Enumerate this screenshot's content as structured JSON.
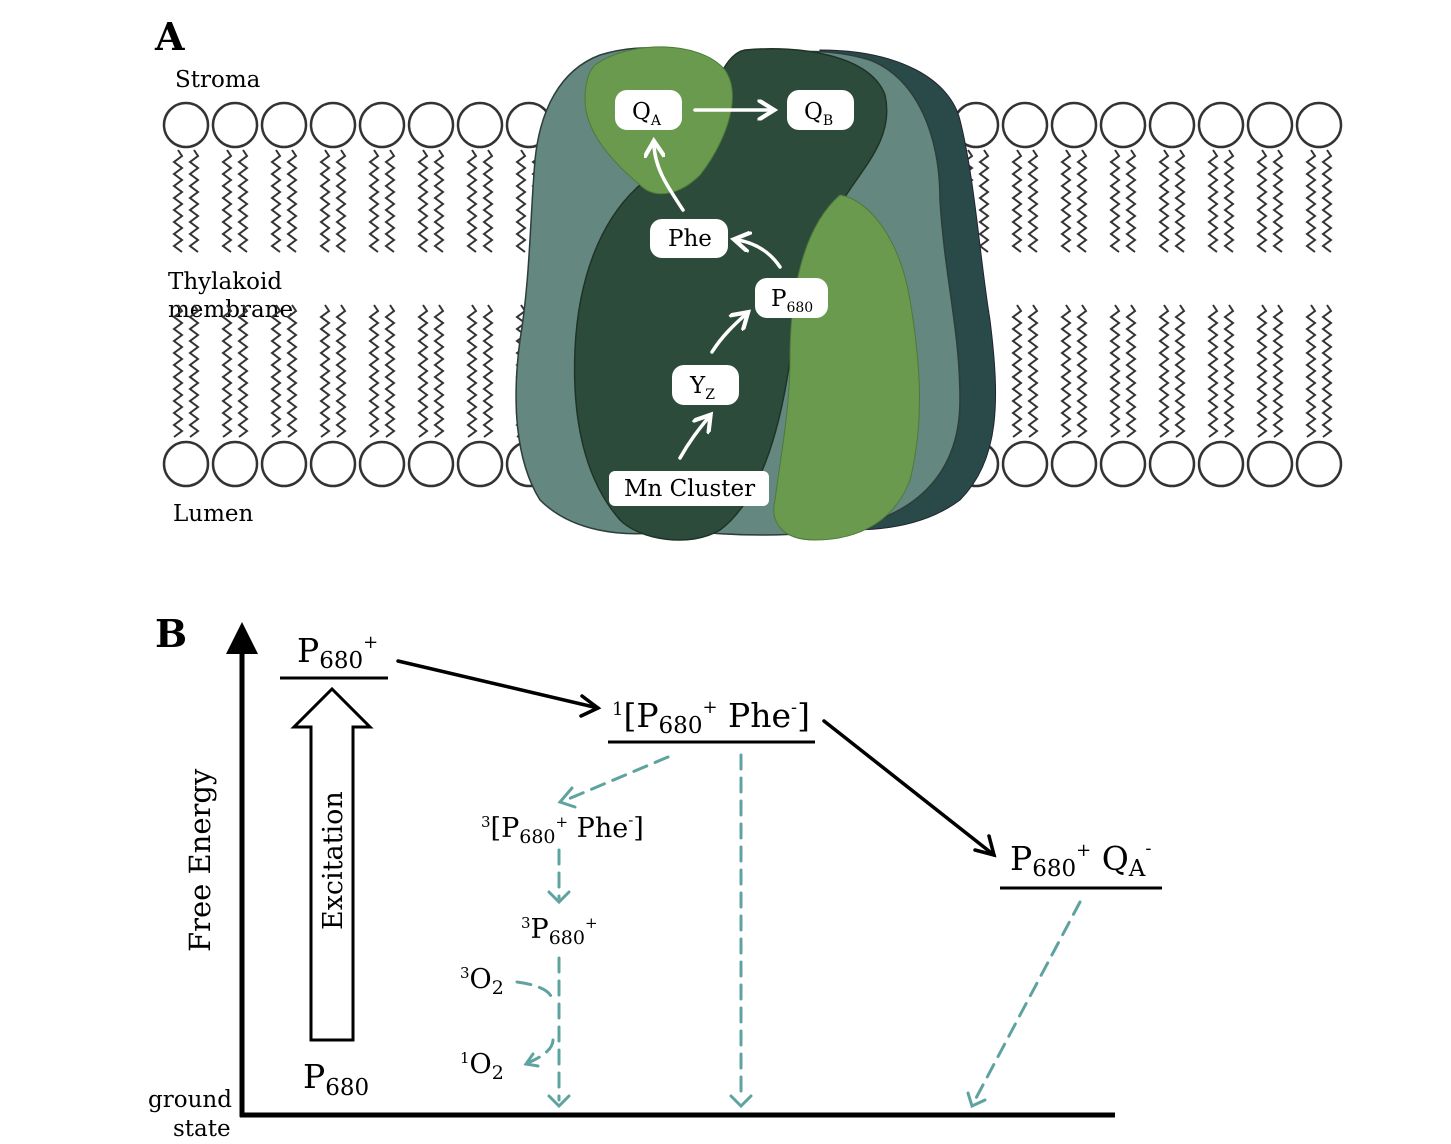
{
  "panel_a": {
    "letter": "A",
    "labels": {
      "stroma": "Stroma",
      "thylakoid_line1": "Thylakoid",
      "thylakoid_line2": "membrane",
      "lumen": "Lumen"
    },
    "cofactors": {
      "qa": {
        "main": "Q",
        "sub": "A"
      },
      "qb": {
        "main": "Q",
        "sub": "B"
      },
      "phe": "Phe",
      "p680": {
        "main": "P",
        "sub": "680"
      },
      "yz": {
        "main": "Y",
        "sub": "Z"
      },
      "mn": "Mn Cluster"
    },
    "colors": {
      "protein_light": "#648780",
      "protein_dark": "#2d4b3b",
      "protein_back": "#2a4a4a",
      "protein_green": "#6a9a4d",
      "lipid_stroke": "#333333"
    }
  },
  "panel_b": {
    "letter": "B",
    "y_axis_label": "Free Energy",
    "ground_label_line1": "ground",
    "ground_label_line2": "state",
    "excitation_label": "Excitation",
    "states": {
      "p680_plus": {
        "main": "P",
        "sub": "680",
        "sup": "+"
      },
      "p680": {
        "main": "P",
        "sub": "680"
      },
      "singlet_pair": {
        "pre": "1",
        "a": "[P",
        "sub": "680",
        "sup": "+",
        "b": " Phe",
        "sup2": "-",
        "c": "]"
      },
      "triplet_pair": {
        "pre": "3",
        "a": "[P",
        "sub": "680",
        "sup": "+",
        "b": " Phe",
        "sup2": "-",
        "c": "]"
      },
      "triplet_p680": {
        "pre": "3",
        "a": "P",
        "sub": "680",
        "sup": "+"
      },
      "o2_triplet": {
        "pre": "3",
        "a": "O",
        "sub": "2"
      },
      "o2_singlet": {
        "pre": "1",
        "a": "O",
        "sub": "2"
      },
      "p680_qa": {
        "a": "P",
        "sub": "680",
        "sup": "+",
        "b": " Q",
        "sub2": "A",
        "sup2": "-"
      }
    },
    "colors": {
      "dashed": "#5fa3a0"
    }
  }
}
